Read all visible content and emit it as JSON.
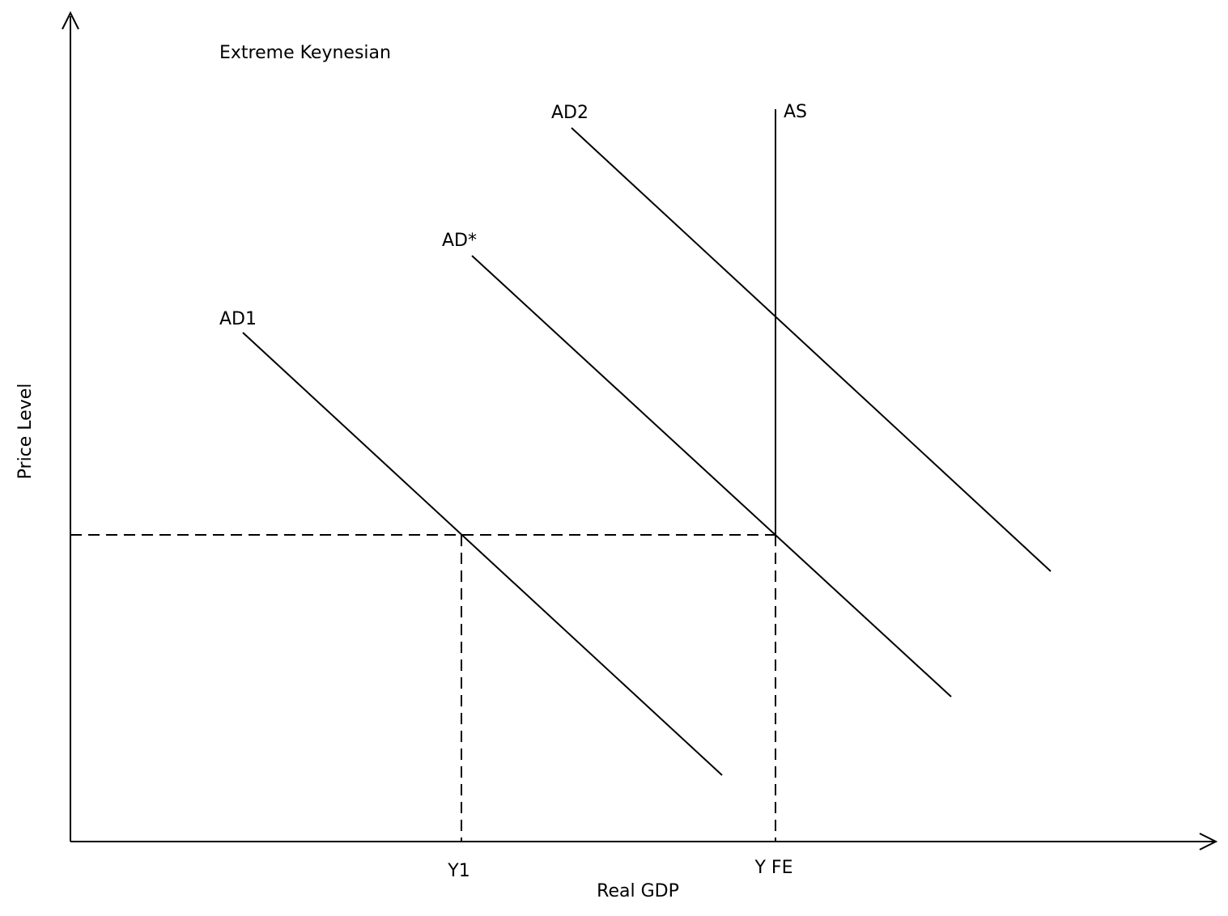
{
  "title": "Extreme Keynesian",
  "axes": {
    "x_label": "Real GDP",
    "y_label": "Price Level"
  },
  "curves": [
    {
      "label": "AD2"
    },
    {
      "label": "AS"
    },
    {
      "label": "AD*"
    },
    {
      "label": "AD1"
    }
  ],
  "x_markers": [
    {
      "label": "Y1"
    },
    {
      "label": "Y FE"
    }
  ]
}
